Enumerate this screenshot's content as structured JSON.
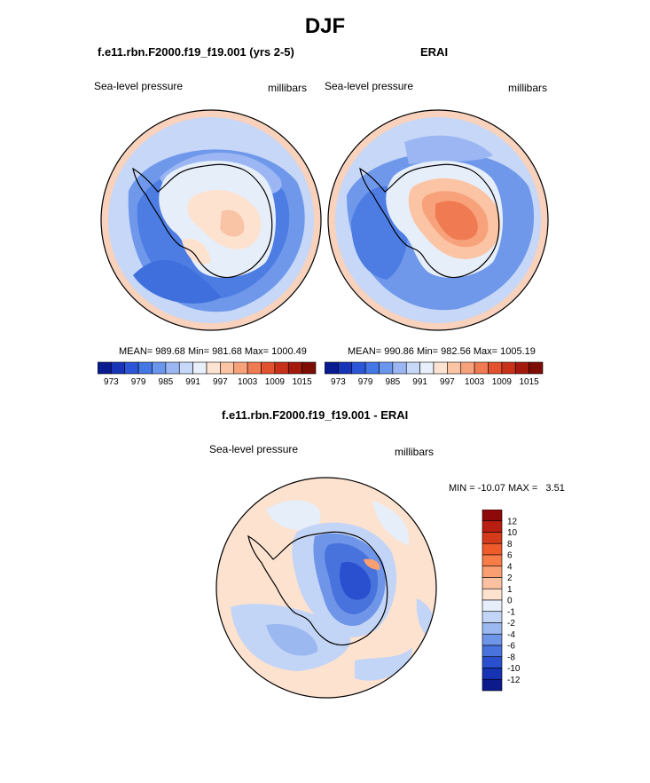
{
  "figure": {
    "season": "DJF"
  },
  "chart_data": [
    {
      "type": "heatmap",
      "id": "model",
      "title": "f.e11.rbn.F2000.f19_f19.001 (yrs 2-5)",
      "variable": "Sea-level pressure",
      "units": "millibars",
      "stats": {
        "mean": 989.68,
        "min": 981.68,
        "max": 1000.49
      },
      "stats_text": "MEAN= 989.68  Min= 981.68  Max= 1000.49",
      "colorbar": {
        "orientation": "horizontal",
        "tick_labels": [
          "973",
          "979",
          "985",
          "991",
          "997",
          "1003",
          "1009",
          "1015"
        ],
        "colors": [
          "#0a1a8f",
          "#1835b8",
          "#2c56d8",
          "#4477e6",
          "#6b96ee",
          "#9bb6f3",
          "#c7d8f8",
          "#e8f0fc",
          "#fde4d2",
          "#fbc4a4",
          "#f7a27b",
          "#f07a52",
          "#e3522f",
          "#c7311a",
          "#a31a0d",
          "#7d0c05"
        ]
      }
    },
    {
      "type": "heatmap",
      "id": "obs",
      "title": "ERAI",
      "variable": "Sea-level pressure",
      "units": "millibars",
      "stats": {
        "mean": 990.86,
        "min": 982.56,
        "max": 1005.19
      },
      "stats_text": "MEAN= 990.86  Min= 982.56  Max= 1005.19",
      "colorbar": {
        "orientation": "horizontal",
        "tick_labels": [
          "973",
          "979",
          "985",
          "991",
          "997",
          "1003",
          "1009",
          "1015"
        ],
        "colors": [
          "#0a1a8f",
          "#1835b8",
          "#2c56d8",
          "#4477e6",
          "#6b96ee",
          "#9bb6f3",
          "#c7d8f8",
          "#e8f0fc",
          "#fde4d2",
          "#fbc4a4",
          "#f7a27b",
          "#f07a52",
          "#e3522f",
          "#c7311a",
          "#a31a0d",
          "#7d0c05"
        ]
      }
    },
    {
      "type": "heatmap",
      "id": "diff",
      "title": "f.e11.rbn.F2000.f19_f19.001 - ERAI",
      "variable": "Sea-level pressure",
      "units": "millibars",
      "stats": {
        "min": -10.07,
        "max": 3.51
      },
      "stats_text": "MIN = -10.07 MAX =   3.51",
      "colorbar": {
        "orientation": "vertical",
        "tick_labels": [
          "12",
          "10",
          "8",
          "6",
          "4",
          "2",
          "1",
          "0",
          "-1",
          "-2",
          "-4",
          "-6",
          "-8",
          "-10",
          "-12"
        ],
        "colors": [
          "#8e0a0a",
          "#b81e12",
          "#d63a1c",
          "#ef5a2a",
          "#f77c48",
          "#fa9f72",
          "#fcc1a0",
          "#fde2cf",
          "#e6eefa",
          "#c3d5f6",
          "#9bb8f0",
          "#6f95e8",
          "#4873dd",
          "#2a50d0",
          "#1633b3",
          "#0c1a8c"
        ]
      }
    }
  ]
}
